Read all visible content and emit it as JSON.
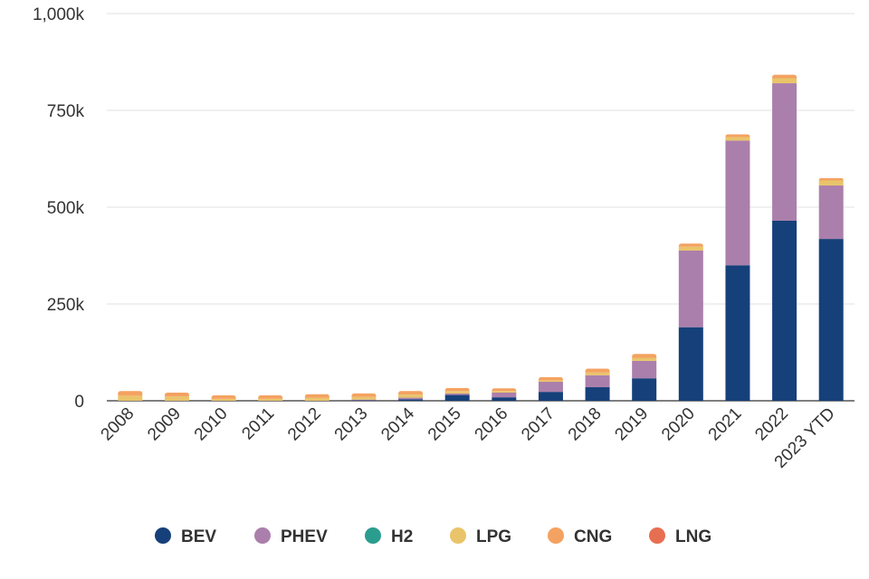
{
  "chart_data": {
    "type": "bar",
    "stacked": true,
    "title": "",
    "xlabel": "",
    "ylabel": "",
    "ylim": [
      0,
      1000000
    ],
    "yticks": [
      0,
      250000,
      500000,
      750000,
      1000000
    ],
    "ytick_labels": [
      "0",
      "250k",
      "500k",
      "750k",
      "1,000k"
    ],
    "grid": true,
    "legend_position": "bottom",
    "categories": [
      "2008",
      "2009",
      "2010",
      "2011",
      "2012",
      "2013",
      "2014",
      "2015",
      "2016",
      "2017",
      "2018",
      "2019",
      "2020",
      "2021",
      "2022",
      "2023 YTD"
    ],
    "series": [
      {
        "name": "BEV",
        "color": "#16407a",
        "values": [
          0,
          0,
          0,
          0,
          0,
          1000,
          4000,
          15000,
          9000,
          23000,
          35000,
          58000,
          190000,
          350000,
          465000,
          418000
        ]
      },
      {
        "name": "PHEV",
        "color": "#ab7fab",
        "values": [
          0,
          0,
          0,
          0,
          0,
          2000,
          4000,
          4000,
          12000,
          26000,
          31000,
          45000,
          198000,
          322000,
          355000,
          138000
        ]
      },
      {
        "name": "H2",
        "color": "#2a9d8f",
        "values": [
          0,
          0,
          0,
          0,
          0,
          0,
          0,
          0,
          0,
          0,
          0,
          0,
          0,
          0,
          0,
          0
        ]
      },
      {
        "name": "LPG",
        "color": "#e9c46a",
        "values": [
          13000,
          11000,
          5000,
          5000,
          8000,
          7000,
          8000,
          6000,
          4000,
          4000,
          7000,
          8000,
          10000,
          9000,
          13000,
          13000
        ]
      },
      {
        "name": "CNG",
        "color": "#f4a261",
        "values": [
          12000,
          10000,
          9000,
          9000,
          9000,
          9000,
          9000,
          8000,
          7000,
          8000,
          10000,
          10000,
          8000,
          7000,
          9000,
          6000
        ]
      },
      {
        "name": "LNG",
        "color": "#e76f51",
        "values": [
          0,
          0,
          0,
          0,
          0,
          0,
          0,
          0,
          0,
          0,
          0,
          0,
          0,
          0,
          0,
          0
        ]
      }
    ]
  }
}
